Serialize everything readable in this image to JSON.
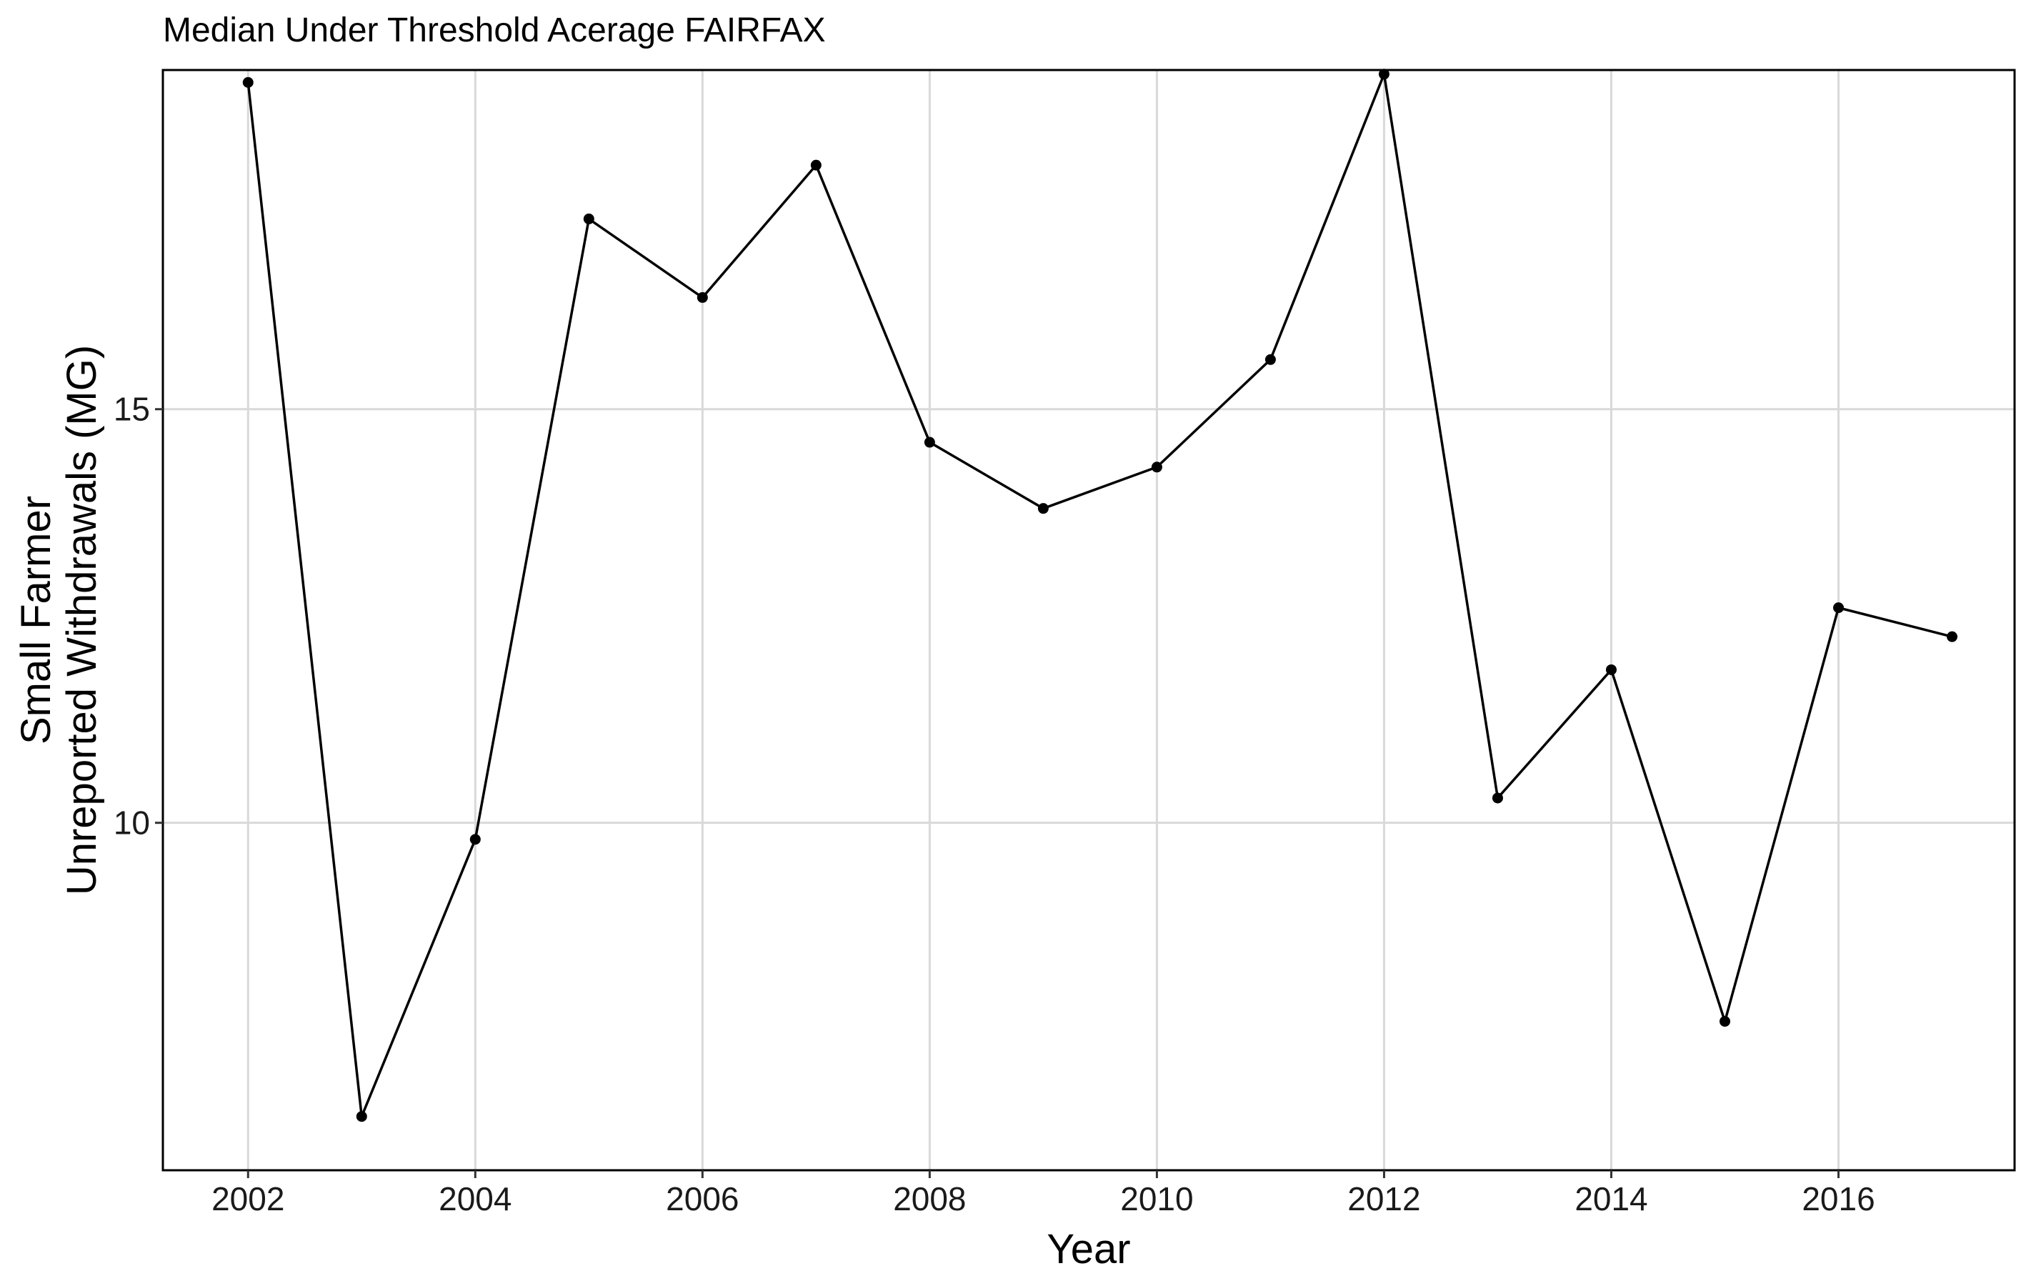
{
  "chart_data": {
    "type": "line",
    "title": "Median Under Threshold Acerage FAIRFAX",
    "xlabel": "Year",
    "ylabel_lines": [
      "Small Farmer",
      "Unreported Withdrawals (MG)"
    ],
    "xlim": [
      2001.25,
      2017.55
    ],
    "ylim": [
      5.8,
      19.1
    ],
    "x_ticks": [
      2002,
      2004,
      2006,
      2008,
      2010,
      2012,
      2014,
      2016
    ],
    "y_ticks": [
      10,
      15
    ],
    "grid": true,
    "series": [
      {
        "name": "Median",
        "x": [
          2002,
          2003,
          2004,
          2005,
          2006,
          2007,
          2008,
          2009,
          2010,
          2011,
          2012,
          2013,
          2014,
          2015,
          2016,
          2017
        ],
        "values": [
          18.95,
          6.45,
          9.8,
          17.3,
          16.35,
          17.95,
          14.6,
          13.8,
          14.3,
          15.6,
          19.05,
          10.3,
          11.85,
          7.6,
          12.6,
          12.25
        ]
      }
    ]
  }
}
